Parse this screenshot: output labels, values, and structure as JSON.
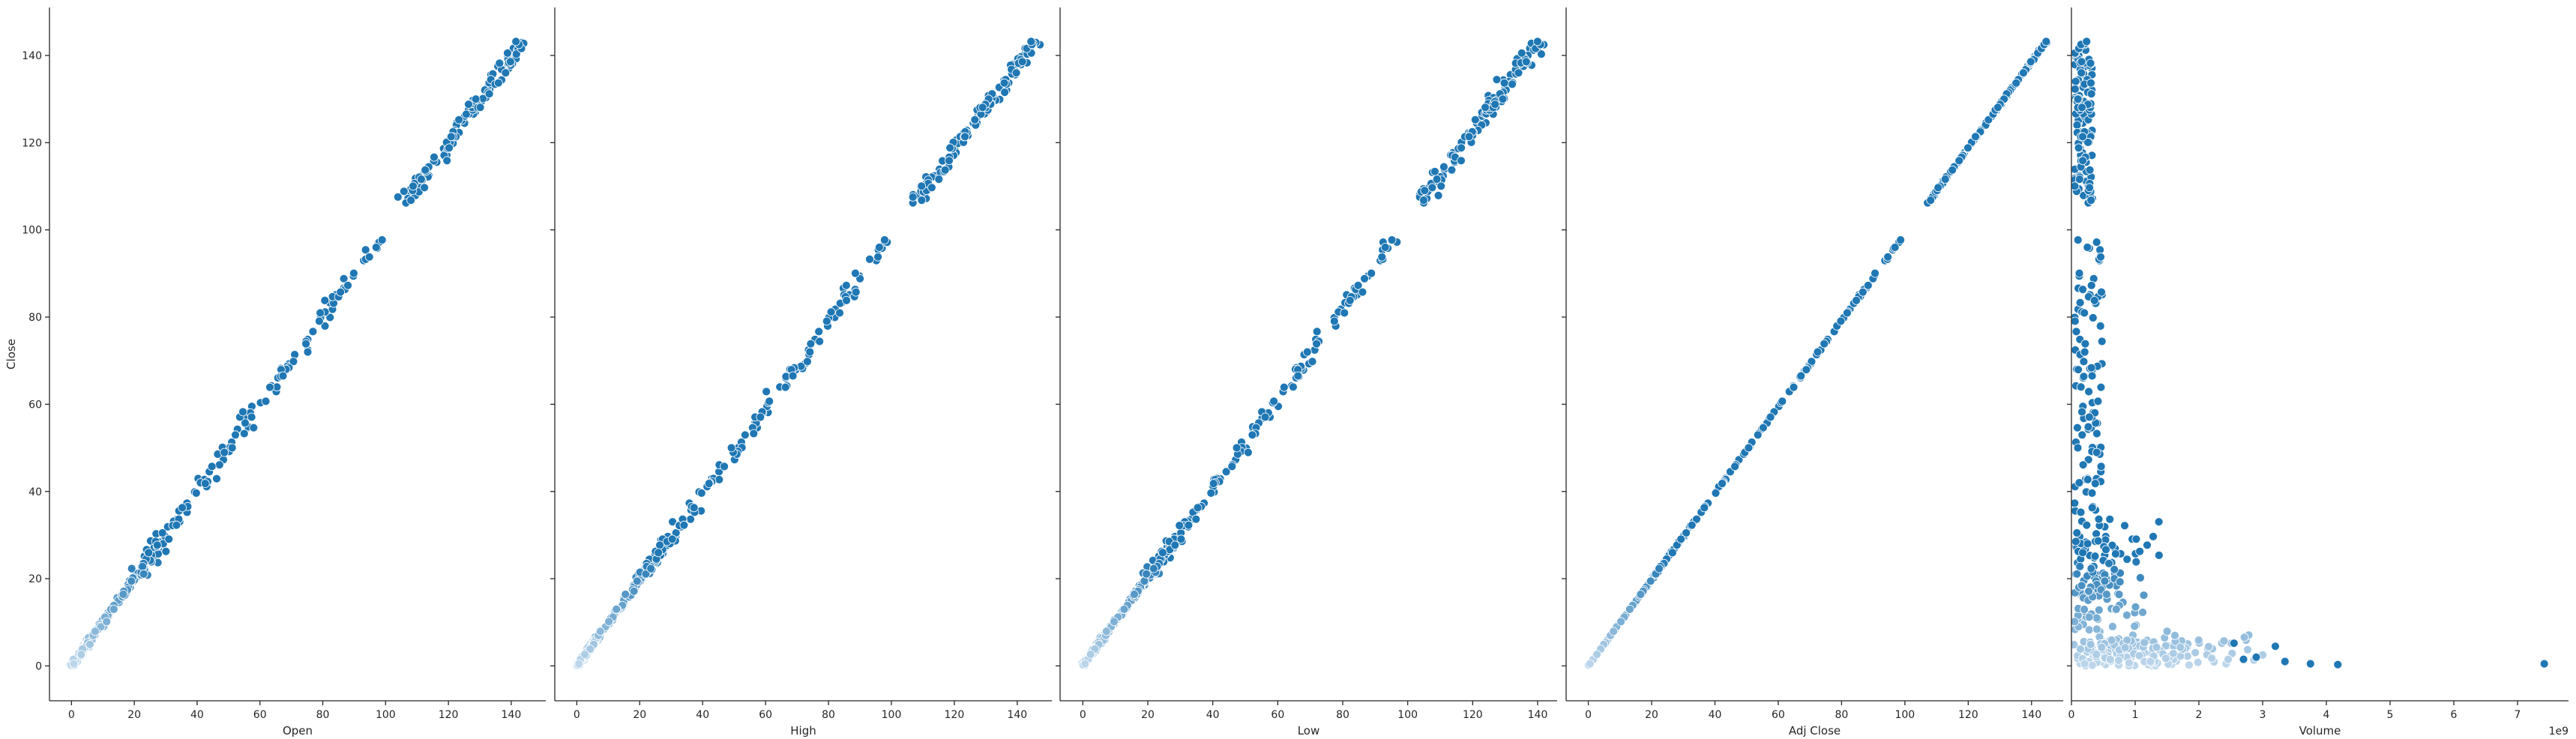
{
  "chart_data": {
    "type": "scatter",
    "layout": "pairplot-row",
    "shared_y": {
      "label": "Close",
      "range": [
        -8,
        151
      ],
      "ticks": [
        0,
        20,
        40,
        60,
        80,
        100,
        120,
        140
      ],
      "tick_labels": [
        "0",
        "20",
        "40",
        "60",
        "80",
        "100",
        "120",
        "140"
      ]
    },
    "point_color": "#1f77b4",
    "point_edge": "#ffffff",
    "grid": false,
    "legend": "none",
    "panels": [
      {
        "id": "open",
        "xlabel": "Open",
        "xlim": [
          -7,
          151
        ],
        "xticks": [
          0,
          20,
          40,
          60,
          80,
          100,
          120,
          140
        ],
        "xtick_labels": [
          "0",
          "20",
          "40",
          "60",
          "80",
          "100",
          "120",
          "140"
        ],
        "x_offset_label": "",
        "relation": "linear",
        "slope": 1.0,
        "noise": 1.4,
        "x_gap": [
          98,
          104
        ]
      },
      {
        "id": "high",
        "xlabel": "High",
        "xlim": [
          -7,
          151
        ],
        "xticks": [
          0,
          20,
          40,
          60,
          80,
          100,
          120,
          140
        ],
        "xtick_labels": [
          "0",
          "20",
          "40",
          "60",
          "80",
          "100",
          "120",
          "140"
        ],
        "x_offset_label": "",
        "relation": "linear",
        "slope": 0.985,
        "noise": 1.2,
        "x_gap": [
          100,
          106
        ]
      },
      {
        "id": "low",
        "xlabel": "Low",
        "xlim": [
          -7,
          146
        ],
        "xticks": [
          0,
          20,
          40,
          60,
          80,
          100,
          120,
          140
        ],
        "xtick_labels": [
          "0",
          "20",
          "40",
          "60",
          "80",
          "100",
          "120",
          "140"
        ],
        "x_offset_label": "",
        "relation": "linear",
        "slope": 1.02,
        "noise": 1.3,
        "x_gap": [
          96,
          102
        ]
      },
      {
        "id": "adj-close",
        "xlabel": "Adj Close",
        "xlim": [
          -7,
          150
        ],
        "xticks": [
          0,
          20,
          40,
          60,
          80,
          100,
          120,
          140
        ],
        "xtick_labels": [
          "0",
          "20",
          "40",
          "60",
          "80",
          "100",
          "120",
          "140"
        ],
        "x_offset_label": "",
        "relation": "linear",
        "slope": 0.99,
        "noise": 0.15,
        "x_gap": [
          98,
          105
        ]
      },
      {
        "id": "volume",
        "xlabel": "Volume",
        "xlim": [
          -4e-10,
          7.8
        ],
        "xticks": [
          0,
          1,
          2,
          3,
          4,
          5,
          6,
          7
        ],
        "xtick_labels": [
          "0",
          "1",
          "2",
          "3",
          "4",
          "5",
          "6",
          "7"
        ],
        "x_offset_label": "1e9",
        "relation": "volume",
        "outliers": [
          [
            7.42,
            0.5
          ],
          [
            4.18,
            0.3
          ],
          [
            3.75,
            0.5
          ],
          [
            3.35,
            1.0
          ],
          [
            3.2,
            4.5
          ],
          [
            2.9,
            2.0
          ],
          [
            2.7,
            1.5
          ],
          [
            2.55,
            5.2
          ]
        ]
      }
    ]
  }
}
